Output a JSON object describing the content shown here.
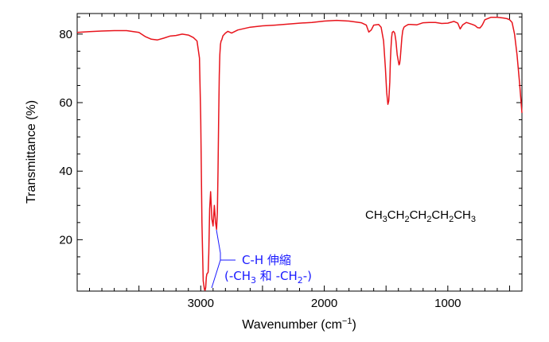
{
  "chart_data": {
    "type": "line",
    "xlabel": "Wavenumber (cm",
    "xlabel_sup": "−1",
    "xlabel_end": ")",
    "ylabel": "Transmittance (%)",
    "xlim": [
      4000,
      400
    ],
    "ylim": [
      5,
      86
    ],
    "x_reversed": true,
    "x_ticks": [
      3000,
      2000,
      1000
    ],
    "y_ticks": [
      20,
      40,
      60,
      80
    ],
    "grid": false,
    "series": [
      {
        "color": "#e8141c",
        "x": [
          4000,
          3900,
          3800,
          3700,
          3600,
          3500,
          3450,
          3400,
          3350,
          3300,
          3250,
          3200,
          3150,
          3100,
          3060,
          3030,
          3010,
          3000,
          2990,
          2980,
          2970,
          2965,
          2960,
          2955,
          2950,
          2940,
          2935,
          2928,
          2920,
          2910,
          2900,
          2890,
          2880,
          2872,
          2865,
          2860,
          2855,
          2850,
          2845,
          2840,
          2835,
          2830,
          2820,
          2800,
          2780,
          2750,
          2700,
          2600,
          2500,
          2400,
          2300,
          2200,
          2100,
          2000,
          1900,
          1800,
          1700,
          1660,
          1640,
          1620,
          1600,
          1560,
          1540,
          1520,
          1505,
          1495,
          1485,
          1478,
          1470,
          1465,
          1460,
          1455,
          1450,
          1440,
          1430,
          1420,
          1410,
          1400,
          1395,
          1390,
          1385,
          1378,
          1372,
          1365,
          1355,
          1340,
          1320,
          1300,
          1250,
          1200,
          1150,
          1100,
          1050,
          1000,
          950,
          920,
          900,
          880,
          850,
          800,
          780,
          760,
          740,
          728,
          720,
          700,
          650,
          600,
          550,
          520,
          500,
          480,
          460,
          440,
          420,
          400
        ],
        "y": [
          80.5,
          80.7,
          80.9,
          81.0,
          81.0,
          80.5,
          79.3,
          78.5,
          78.3,
          78.8,
          79.4,
          79.6,
          80.0,
          79.7,
          79.0,
          78.0,
          73.0,
          55.0,
          25.0,
          8.0,
          5.5,
          5.2,
          6.0,
          9.0,
          10.0,
          10.5,
          16.0,
          29.0,
          34.0,
          26.0,
          24.0,
          30.0,
          25.0,
          23.0,
          28.0,
          40.0,
          55.0,
          68.0,
          74.0,
          77.0,
          78.0,
          78.3,
          79.5,
          80.3,
          80.8,
          80.3,
          81.2,
          82.0,
          82.4,
          82.6,
          82.9,
          83.2,
          83.4,
          83.8,
          84.0,
          83.8,
          83.3,
          82.6,
          80.6,
          81.2,
          82.6,
          82.8,
          82.0,
          78.0,
          70.0,
          63.0,
          59.5,
          60.5,
          66.0,
          72.0,
          76.0,
          79.0,
          80.5,
          80.8,
          80.3,
          78.0,
          74.0,
          72.0,
          71.0,
          71.4,
          73.0,
          76.0,
          79.0,
          81.0,
          82.0,
          82.4,
          82.8,
          82.8,
          82.7,
          83.3,
          83.4,
          83.4,
          83.1,
          83.2,
          83.7,
          83.2,
          81.5,
          82.7,
          83.4,
          82.8,
          82.5,
          81.9,
          81.8,
          82.3,
          82.7,
          84.2,
          84.9,
          84.9,
          84.7,
          84.5,
          84.2,
          83.4,
          80.0,
          74.0,
          66.0,
          57.0
        ]
      }
    ],
    "annotation": {
      "line1": "C-H 伸縮",
      "line2_a": "(-CH",
      "line2_sub1": "3",
      "line2_b": " 和 -CH",
      "line2_sub2": "2",
      "line2_c": "-)",
      "color": "#1a1aff"
    },
    "formula": {
      "parts": [
        "CH",
        "3",
        "CH",
        "2",
        "CH",
        "2",
        "CH",
        "2",
        "CH",
        "3"
      ]
    }
  }
}
